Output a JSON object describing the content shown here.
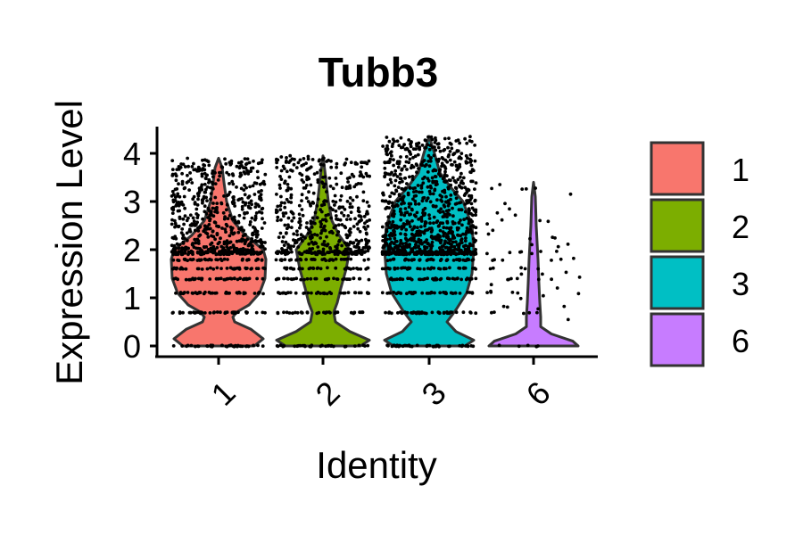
{
  "chart_data": {
    "type": "violin",
    "title": "Tubb3",
    "xlabel": "Identity",
    "ylabel": "Expression Level",
    "categories": [
      "1",
      "2",
      "3",
      "6"
    ],
    "colors": [
      "#F8766D",
      "#7CAE00",
      "#00BFC4",
      "#C77CFF"
    ],
    "y_ticks": [
      "0",
      "1",
      "2",
      "3",
      "4"
    ],
    "ylim": [
      -0.1,
      4.55
    ],
    "max_values": [
      3.9,
      3.95,
      4.35,
      3.4
    ],
    "legend": {
      "position": "right",
      "entries": [
        "1",
        "2",
        "3",
        "6"
      ]
    },
    "grid": false
  }
}
